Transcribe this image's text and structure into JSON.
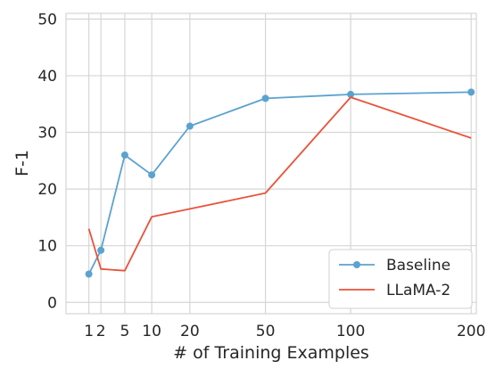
{
  "chart_data": {
    "type": "line",
    "xlabel": "# of Training Examples",
    "ylabel": "F-1",
    "x_scale": "sqrt",
    "xlim": [
      0,
      200
    ],
    "ylim": [
      -2,
      51
    ],
    "x_ticks": [
      1,
      2,
      5,
      10,
      20,
      50,
      100,
      200
    ],
    "x_tick_labels": [
      "1",
      "2",
      "5",
      "10",
      "20",
      "50",
      "100",
      "200"
    ],
    "y_ticks": [
      0,
      10,
      20,
      30,
      40,
      50
    ],
    "y_tick_labels": [
      "0",
      "10",
      "20",
      "30",
      "40",
      "50"
    ],
    "grid": true,
    "legend_position": "lower-right",
    "series": [
      {
        "name": "Baseline",
        "color": "#5ba3cf",
        "marker": "circle",
        "x": [
          1,
          2,
          5,
          10,
          20,
          50,
          100,
          200
        ],
        "y": [
          5.0,
          9.2,
          26.0,
          22.5,
          31.1,
          36.0,
          36.7,
          37.1
        ]
      },
      {
        "name": "LLaMA-2",
        "color": "#e8533a",
        "marker": "none",
        "x": [
          1,
          2,
          5,
          10,
          20,
          50,
          100,
          200
        ],
        "y": [
          13.0,
          5.9,
          5.6,
          15.1,
          16.5,
          19.3,
          36.2,
          29.0
        ]
      }
    ]
  }
}
